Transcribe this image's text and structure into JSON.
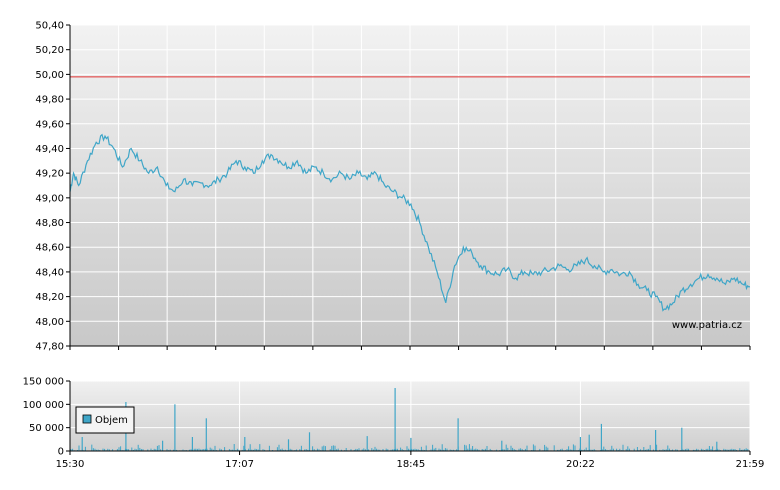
{
  "watermark": "www.patria.cz",
  "legend": {
    "label": "Objem",
    "color": "#3fa6c8"
  },
  "colors": {
    "price_line": "#3fa6c8",
    "volume_bar": "#3fa6c8",
    "reference_line": "#e03030",
    "grid": "#ffffff",
    "axis": "#000000",
    "plot_bg_top": "#f2f2f2",
    "plot_bg_bottom": "#c8c8c8"
  },
  "chart_data": [
    {
      "type": "line",
      "name": "price",
      "xlim": [
        "15:30",
        "21:59"
      ],
      "ylim": [
        47.8,
        50.4
      ],
      "y_ticks": [
        "50,40",
        "50,20",
        "50,00",
        "49,80",
        "49,60",
        "49,40",
        "49,20",
        "49,00",
        "48,80",
        "48,60",
        "48,40",
        "48,20",
        "48,00",
        "47,80"
      ],
      "reference_line": 49.98,
      "grid": true,
      "x": [
        "15:30",
        "15:32",
        "15:35",
        "15:40",
        "15:45",
        "15:50",
        "15:55",
        "16:00",
        "16:05",
        "16:10",
        "16:15",
        "16:20",
        "16:25",
        "16:30",
        "16:35",
        "16:40",
        "16:45",
        "16:50",
        "16:55",
        "17:00",
        "17:05",
        "17:10",
        "17:15",
        "17:20",
        "17:25",
        "17:30",
        "17:35",
        "17:40",
        "17:45",
        "17:50",
        "17:55",
        "18:00",
        "18:05",
        "18:10",
        "18:15",
        "18:20",
        "18:25",
        "18:30",
        "18:35",
        "18:40",
        "18:45",
        "18:50",
        "18:55",
        "19:00",
        "19:05",
        "19:10",
        "19:15",
        "19:20",
        "19:25",
        "19:30",
        "19:35",
        "19:40",
        "19:45",
        "19:50",
        "19:55",
        "20:00",
        "20:05",
        "20:10",
        "20:15",
        "20:20",
        "20:25",
        "20:30",
        "20:35",
        "20:40",
        "20:45",
        "20:50",
        "20:55",
        "21:00",
        "21:05",
        "21:10",
        "21:15",
        "21:20",
        "21:25",
        "21:30",
        "21:35",
        "21:40",
        "21:45",
        "21:50",
        "21:55",
        "21:59"
      ],
      "values": [
        49.05,
        49.2,
        49.1,
        49.3,
        49.45,
        49.5,
        49.4,
        49.25,
        49.4,
        49.3,
        49.2,
        49.25,
        49.1,
        49.05,
        49.15,
        49.1,
        49.12,
        49.1,
        49.15,
        49.2,
        49.3,
        49.25,
        49.2,
        49.3,
        49.35,
        49.3,
        49.25,
        49.3,
        49.2,
        49.25,
        49.2,
        49.15,
        49.2,
        49.15,
        49.2,
        49.15,
        49.2,
        49.1,
        49.05,
        49.0,
        48.95,
        48.8,
        48.6,
        48.4,
        48.15,
        48.45,
        48.6,
        48.55,
        48.45,
        48.4,
        48.38,
        48.42,
        48.35,
        48.4,
        48.38,
        48.4,
        48.42,
        48.45,
        48.42,
        48.45,
        48.5,
        48.45,
        48.4,
        48.42,
        48.38,
        48.4,
        48.3,
        48.25,
        48.2,
        48.1,
        48.15,
        48.25,
        48.3,
        48.35,
        48.38,
        48.35,
        48.3,
        48.35,
        48.3,
        48.28
      ]
    },
    {
      "type": "bar",
      "name": "Objem",
      "xlim": [
        "15:30",
        "21:59"
      ],
      "ylim": [
        0,
        150000
      ],
      "y_ticks": [
        "150 000",
        "100 000",
        "50 000",
        "0"
      ],
      "x_ticks": [
        "15:30",
        "17:07",
        "18:45",
        "20:22",
        "21:59"
      ],
      "grid": true,
      "legend": "inside-top-left",
      "volume_baseline_max": 15000,
      "spikes": [
        {
          "x": "15:37",
          "value": 30000
        },
        {
          "x": "16:02",
          "value": 105000
        },
        {
          "x": "16:23",
          "value": 22000
        },
        {
          "x": "16:30",
          "value": 100000
        },
        {
          "x": "16:40",
          "value": 30000
        },
        {
          "x": "16:48",
          "value": 70000
        },
        {
          "x": "17:10",
          "value": 30000
        },
        {
          "x": "17:35",
          "value": 25000
        },
        {
          "x": "17:47",
          "value": 40000
        },
        {
          "x": "18:20",
          "value": 32000
        },
        {
          "x": "18:36",
          "value": 135000
        },
        {
          "x": "18:45",
          "value": 28000
        },
        {
          "x": "19:12",
          "value": 70000
        },
        {
          "x": "19:37",
          "value": 22000
        },
        {
          "x": "20:22",
          "value": 30000
        },
        {
          "x": "20:27",
          "value": 35000
        },
        {
          "x": "20:34",
          "value": 58000
        },
        {
          "x": "21:05",
          "value": 45000
        },
        {
          "x": "21:20",
          "value": 50000
        },
        {
          "x": "21:40",
          "value": 20000
        }
      ]
    }
  ]
}
